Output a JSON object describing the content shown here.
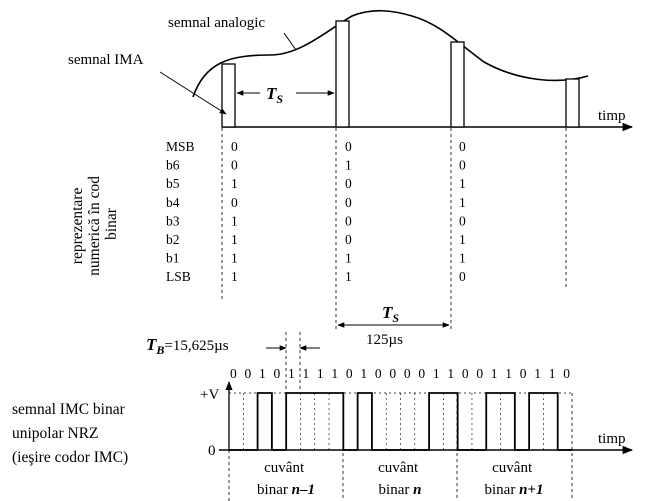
{
  "labels": {
    "analog": "semnal analogic",
    "ima": "semnal IMA",
    "timp_top": "timp",
    "timp_bottom": "timp",
    "ts_top": "T",
    "ts_top_sub": "S",
    "vertical": [
      "reprezentare",
      "numerică în cod",
      "binar"
    ],
    "ts_mid": "T",
    "ts_mid_sub": "S",
    "ts_value": "125µs",
    "tb": "T",
    "tb_sub": "B",
    "tb_value": "=15,625µs",
    "plus_v": "+V",
    "zero": "0",
    "imc_lines": [
      "semnal IMC binar",
      "unipolar NRZ",
      "(ieşire codor IMC)"
    ],
    "word_prefix": "cuvânt",
    "word_binar": "binar ",
    "words": [
      "n–1",
      "n",
      "n+1"
    ]
  },
  "bit_names": [
    "MSB",
    "b6",
    "b5",
    "b4",
    "b3",
    "b2",
    "b1",
    "LSB"
  ],
  "samples": [
    [
      0,
      0,
      1,
      0,
      1,
      1,
      1,
      1
    ],
    [
      0,
      1,
      0,
      0,
      0,
      0,
      1,
      1
    ],
    [
      0,
      0,
      1,
      1,
      0,
      1,
      1,
      0
    ]
  ],
  "bit_stream_label": "0 0 1 0 1 1 1 1 0 1 0 0 0 0 1 1 0 0 1 1 0 1 1 0"
}
